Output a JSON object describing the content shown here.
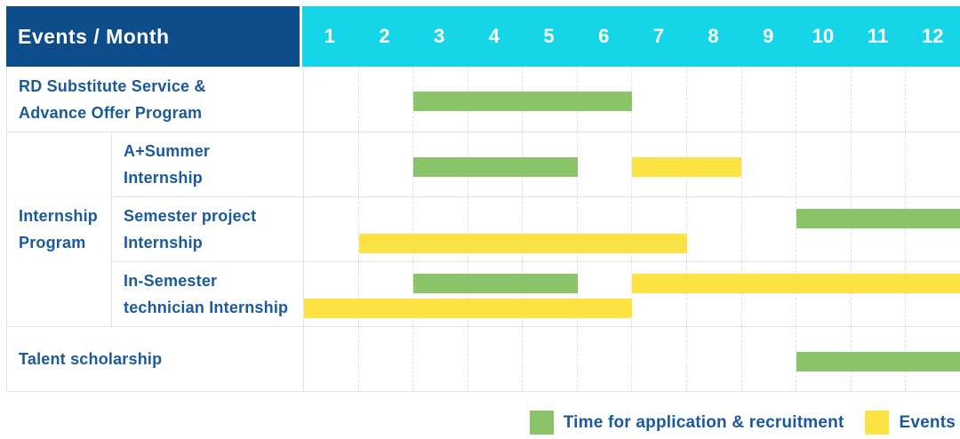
{
  "colors": {
    "header_bg": "#0d4d8c",
    "month_header_bg": "#17d5e8",
    "text_blue": "#1a5a9c",
    "grid_line": "#e4e4e4",
    "application_bar": "#8bc468",
    "event_bar": "#fde243"
  },
  "chart_data": {
    "type": "bar",
    "subtype": "gantt-schedule",
    "title": "Events / Month",
    "x_axis": {
      "label": "Month",
      "ticks": [
        1,
        2,
        3,
        4,
        5,
        6,
        7,
        8,
        9,
        10,
        11,
        12
      ],
      "range": [
        1,
        12
      ]
    },
    "grid": true,
    "legend_position": "bottom-right",
    "groups": [
      {
        "label": "Internship\nProgram",
        "rows": [
          1,
          2,
          3
        ]
      }
    ],
    "rows": [
      {
        "label": "RD Substitute Service &\nAdvance Offer Program",
        "group": null,
        "bars": [
          {
            "series": "application",
            "start_month": 3,
            "end_month": 6,
            "lane": 0
          }
        ]
      },
      {
        "label": "A+Summer\nInternship",
        "group": "Internship Program",
        "bars": [
          {
            "series": "application",
            "start_month": 3,
            "end_month": 5,
            "lane": 0
          },
          {
            "series": "event",
            "start_month": 7,
            "end_month": 8,
            "lane": 0
          }
        ]
      },
      {
        "label": "Semester project\nInternship",
        "group": "Internship Program",
        "bars": [
          {
            "series": "application",
            "start_month": 10,
            "end_month": 12,
            "lane": 0
          },
          {
            "series": "event",
            "start_month": 2,
            "end_month": 7,
            "lane": 1
          }
        ]
      },
      {
        "label": "In-Semester\ntechnician Internship",
        "group": "Internship Program",
        "bars": [
          {
            "series": "application",
            "start_month": 3,
            "end_month": 5,
            "lane": 0
          },
          {
            "series": "event",
            "start_month": 7,
            "end_month": 12,
            "lane": 0
          },
          {
            "series": "event",
            "start_month": 1,
            "end_month": 6,
            "lane": 1
          }
        ]
      },
      {
        "label": "Talent scholarship",
        "group": null,
        "bars": [
          {
            "series": "application",
            "start_month": 10,
            "end_month": 12,
            "lane": 0
          }
        ]
      }
    ],
    "legend": [
      {
        "series": "application",
        "label": "Time for application & recruitment",
        "color": "#8bc468"
      },
      {
        "series": "event",
        "label": "Events",
        "color": "#fde243"
      }
    ]
  }
}
